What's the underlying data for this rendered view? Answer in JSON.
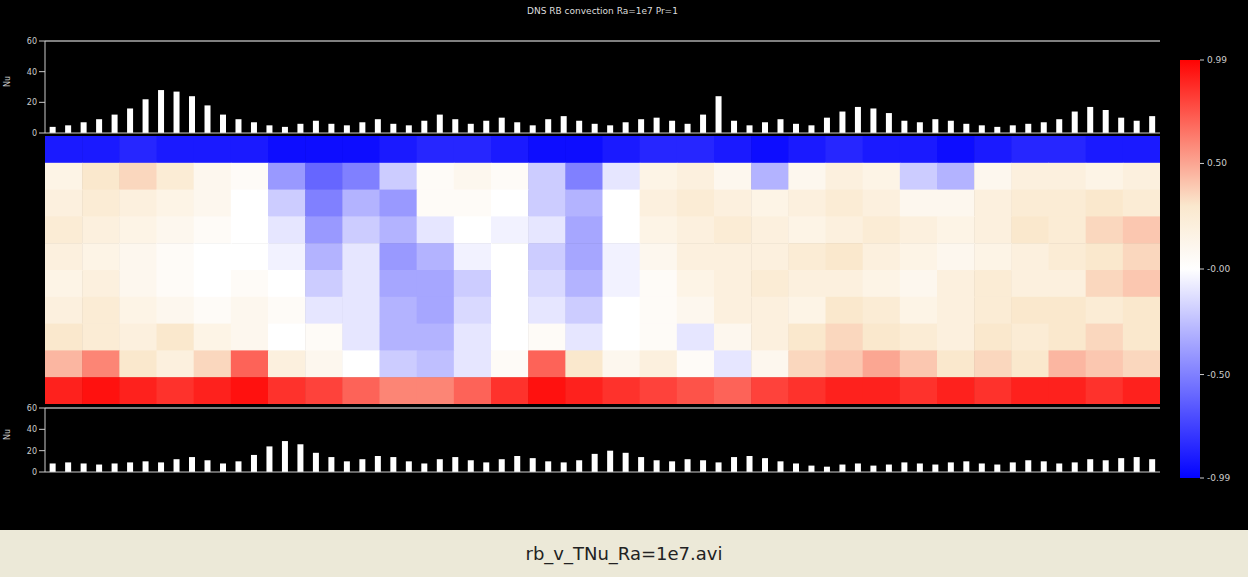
{
  "chart_data": [
    {
      "type": "bar",
      "title": "DNS RB convection Ra=1e7 Pr=1",
      "y_label": "Nu",
      "categories": [
        null,
        null,
        null,
        null,
        null,
        null,
        null,
        null,
        null,
        null,
        null,
        null,
        null,
        null,
        null,
        null,
        null,
        null,
        null,
        null,
        null,
        null,
        null,
        null,
        null,
        null,
        null,
        null,
        null,
        null,
        null,
        null,
        null,
        null,
        null,
        null,
        null,
        null,
        null,
        null,
        null,
        null,
        null,
        null,
        null,
        null,
        null,
        null,
        null,
        null,
        null,
        null,
        null,
        null,
        null,
        null,
        null,
        null,
        null,
        null,
        null,
        null,
        null,
        null,
        null,
        null,
        null,
        null,
        null,
        null,
        null,
        null
      ],
      "values": [
        4,
        5,
        7,
        9,
        12,
        16,
        22,
        28,
        27,
        24,
        18,
        12,
        9,
        7,
        5,
        4,
        6,
        8,
        6,
        5,
        7,
        9,
        6,
        5,
        8,
        12,
        9,
        6,
        8,
        10,
        7,
        5,
        9,
        11,
        8,
        6,
        5,
        7,
        9,
        10,
        8,
        6,
        12,
        24,
        8,
        5,
        7,
        9,
        6,
        5,
        10,
        14,
        17,
        16,
        13,
        8,
        7,
        9,
        8,
        6,
        5,
        4,
        5,
        6,
        7,
        9,
        14,
        17,
        15,
        10,
        8,
        11
      ],
      "color": "#ffffff",
      "ylim": [
        0,
        60
      ],
      "yticks": [
        0,
        20,
        40,
        60
      ],
      "tick_labels": "y"
    },
    {
      "type": "heatmap",
      "cells": [
        [
          -0.9,
          -0.9,
          -0.85,
          -0.9,
          -0.9,
          -0.9,
          -0.95,
          -0.95,
          -0.95,
          -0.9,
          -0.85,
          -0.85,
          -0.9,
          -0.95,
          -0.95,
          -0.9,
          -0.85,
          -0.85,
          -0.9,
          -0.95,
          -0.9,
          -0.85,
          -0.9,
          -0.9,
          -0.95,
          -0.9,
          -0.85,
          -0.85,
          -0.9,
          -0.9
        ],
        [
          0.15,
          0.3,
          0.35,
          0.25,
          0.1,
          0.05,
          -0.4,
          -0.6,
          -0.5,
          -0.2,
          0.05,
          0.1,
          0.05,
          -0.2,
          -0.5,
          -0.1,
          0.15,
          0.2,
          0.1,
          -0.3,
          0.1,
          0.2,
          0.15,
          -0.2,
          -0.3,
          0.1,
          0.2,
          0.2,
          0.15,
          0.2
        ],
        [
          0.2,
          0.25,
          0.2,
          0.15,
          0.1,
          0,
          -0.2,
          -0.5,
          -0.3,
          -0.4,
          0.05,
          0.05,
          0,
          -0.2,
          -0.3,
          0,
          0.2,
          0.25,
          0.2,
          0.15,
          0.2,
          0.25,
          0.2,
          0.1,
          0.1,
          0.2,
          0.25,
          0.25,
          0.3,
          0.25
        ],
        [
          0.25,
          0.2,
          0.15,
          0.1,
          0.05,
          0,
          -0.1,
          -0.4,
          -0.2,
          -0.3,
          -0.1,
          0,
          -0.05,
          -0.1,
          -0.35,
          0,
          0.15,
          0.2,
          0.25,
          0.2,
          0.15,
          0.2,
          0.25,
          0.2,
          0.15,
          0.2,
          0.3,
          0.25,
          0.35,
          0.4
        ],
        [
          0.2,
          0.15,
          0.1,
          0.05,
          0,
          0,
          -0.05,
          -0.3,
          -0.1,
          -0.4,
          -0.3,
          -0.05,
          0,
          -0.2,
          -0.35,
          -0.05,
          0.1,
          0.2,
          0.2,
          0.2,
          0.25,
          0.3,
          0.2,
          0.15,
          0.1,
          0.15,
          0.2,
          0.25,
          0.3,
          0.35
        ],
        [
          0.15,
          0.2,
          0.1,
          0.05,
          0,
          0.05,
          0,
          -0.2,
          -0.1,
          -0.35,
          -0.35,
          -0.2,
          0,
          -0.15,
          -0.3,
          -0.05,
          0.05,
          0.15,
          0.2,
          0.25,
          0.2,
          0.2,
          0.15,
          0.1,
          0.2,
          0.25,
          0.2,
          0.2,
          0.35,
          0.4
        ],
        [
          0.2,
          0.25,
          0.15,
          0.1,
          0.05,
          0.1,
          0.05,
          -0.1,
          -0.1,
          -0.3,
          -0.35,
          -0.15,
          0,
          -0.1,
          -0.2,
          0,
          0.05,
          0.1,
          0.2,
          0.2,
          0.15,
          0.3,
          0.25,
          0.15,
          0.2,
          0.25,
          0.3,
          0.3,
          0.25,
          0.3
        ],
        [
          0.3,
          0.25,
          0.2,
          0.3,
          0.15,
          0.1,
          0,
          0.05,
          -0.1,
          -0.3,
          -0.3,
          -0.1,
          0,
          0.05,
          -0.1,
          0,
          0.05,
          -0.1,
          0.1,
          0.2,
          0.3,
          0.35,
          0.3,
          0.25,
          0.2,
          0.3,
          0.25,
          0.3,
          0.35,
          0.3
        ],
        [
          0.45,
          0.6,
          0.3,
          0.2,
          0.35,
          0.7,
          0.2,
          0.1,
          0,
          -0.2,
          -0.25,
          -0.1,
          0.05,
          0.7,
          0.3,
          0.1,
          0.2,
          0.05,
          -0.1,
          0.1,
          0.35,
          0.4,
          0.5,
          0.4,
          0.3,
          0.35,
          0.3,
          0.45,
          0.4,
          0.35
        ],
        [
          0.9,
          0.95,
          0.9,
          0.85,
          0.9,
          0.95,
          0.85,
          0.8,
          0.7,
          0.6,
          0.6,
          0.7,
          0.85,
          0.95,
          0.9,
          0.85,
          0.8,
          0.75,
          0.7,
          0.8,
          0.85,
          0.9,
          0.9,
          0.85,
          0.9,
          0.85,
          0.9,
          0.9,
          0.85,
          0.9
        ]
      ],
      "colorbar_range": [
        -0.99,
        0.99
      ],
      "colorbar_ticks": [
        -0.99,
        {
          "value": -0.5,
          "label": "-0.50"
        },
        {
          "value": 0,
          "label": "-0.00"
        },
        {
          "value": 0.5,
          "label": "0.50"
        },
        0.99
      ],
      "tick_labels": false
    },
    {
      "type": "bar",
      "y_label": "Nu",
      "categories": [
        null,
        null,
        null,
        null,
        null,
        null,
        null,
        null,
        null,
        null,
        null,
        null,
        null,
        null,
        null,
        null,
        null,
        null,
        null,
        null,
        null,
        null,
        null,
        null,
        null,
        null,
        null,
        null,
        null,
        null,
        null,
        null,
        null,
        null,
        null,
        null,
        null,
        null,
        null,
        null,
        null,
        null,
        null,
        null,
        null,
        null,
        null,
        null,
        null,
        null,
        null,
        null,
        null,
        null,
        null,
        null,
        null,
        null,
        null,
        null,
        null,
        null,
        null,
        null,
        null,
        null,
        null,
        null,
        null,
        null,
        null,
        null
      ],
      "values": [
        8,
        9,
        8,
        7,
        8,
        9,
        10,
        9,
        12,
        14,
        11,
        8,
        10,
        16,
        24,
        29,
        26,
        18,
        14,
        10,
        12,
        15,
        14,
        10,
        8,
        12,
        14,
        11,
        9,
        12,
        15,
        13,
        10,
        9,
        11,
        17,
        20,
        18,
        14,
        11,
        10,
        12,
        11,
        9,
        14,
        15,
        13,
        10,
        8,
        6,
        5,
        7,
        8,
        6,
        7,
        9,
        8,
        7,
        9,
        10,
        8,
        7,
        9,
        11,
        10,
        8,
        9,
        12,
        11,
        13,
        14,
        12
      ],
      "color": "#ffffff",
      "ylim": [
        0,
        60
      ],
      "yticks": [
        0,
        20,
        40,
        60
      ],
      "tick_labels": "y"
    }
  ],
  "caption": "rb_v_TNu_Ra=1e7.avi"
}
